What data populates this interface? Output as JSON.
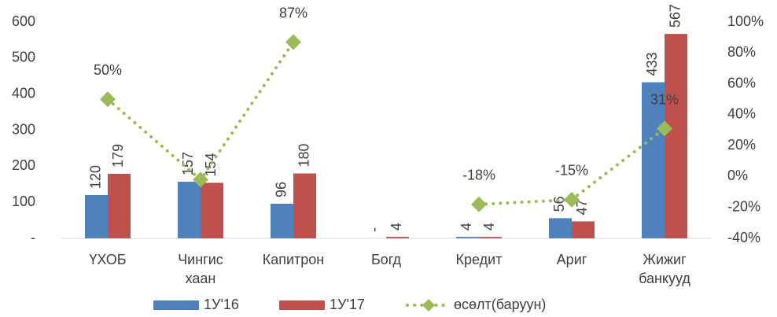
{
  "chart_data": {
    "type": "bar",
    "categories": [
      "ҮХОБ",
      "Чингис хаан",
      "Капитрон",
      "Богд",
      "Кредит",
      "Ариг",
      "Жижиг банкууд"
    ],
    "series": [
      {
        "name": "1У'16",
        "color": "#4f81bd",
        "values": [
          120,
          157,
          96,
          0,
          4,
          56,
          433
        ],
        "value_labels": [
          "120",
          "157",
          "96",
          "-",
          "4",
          "56",
          "433"
        ]
      },
      {
        "name": "1У'17",
        "color": "#c0504d",
        "values": [
          179,
          154,
          180,
          4,
          4,
          47,
          567
        ]
      },
      {
        "name": "өсөлт(баруун)",
        "type": "line",
        "axis": "y2",
        "color": "#9bbb59",
        "values": [
          50,
          -2,
          87,
          null,
          -18,
          -15,
          31
        ],
        "value_labels": [
          "50%",
          null,
          "87%",
          null,
          "-18%",
          "-15%",
          "31%"
        ]
      }
    ],
    "ylim": [
      0,
      600
    ],
    "yticks": [
      {
        "value": 0,
        "label": "-"
      },
      100,
      200,
      300,
      400,
      500,
      600
    ],
    "y2lim": [
      -40,
      100
    ],
    "y2ticks": [
      {
        "value": -40,
        "label": "-40%"
      },
      {
        "value": -20,
        "label": "-20%"
      },
      {
        "value": 0,
        "label": "0%"
      },
      {
        "value": 20,
        "label": "20%"
      },
      {
        "value": 40,
        "label": "40%"
      },
      {
        "value": 60,
        "label": "60%"
      },
      {
        "value": 80,
        "label": "80%"
      },
      {
        "value": 100,
        "label": "100%"
      }
    ],
    "legend": "bottom",
    "grid": false
  }
}
